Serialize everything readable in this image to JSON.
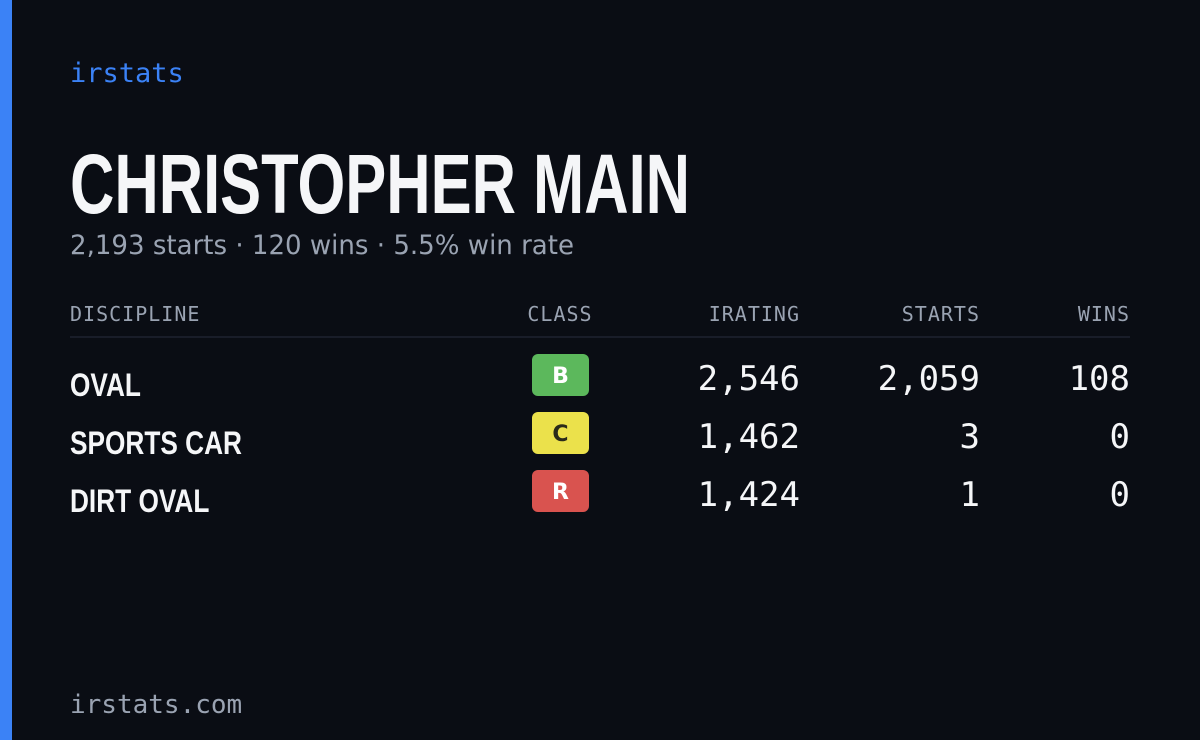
{
  "brand": "irstats",
  "name": "CHRISTOPHER MAIN",
  "summary": "2,193 starts · 120 wins · 5.5% win rate",
  "table": {
    "headers": [
      "DISCIPLINE",
      "CLASS",
      "IRATING",
      "STARTS",
      "WINS"
    ],
    "rows": [
      {
        "discipline": "OVAL",
        "class": "B",
        "class_color": "#5cb85c",
        "irating": "2,546",
        "starts": "2,059",
        "wins": "108"
      },
      {
        "discipline": "SPORTS CAR",
        "class": "C",
        "class_color": "#ebe14b",
        "irating": "1,462",
        "starts": "3",
        "wins": "0"
      },
      {
        "discipline": "DIRT OVAL",
        "class": "R",
        "class_color": "#d9534f",
        "irating": "1,424",
        "starts": "1",
        "wins": "0"
      }
    ]
  },
  "footer": "irstats.com"
}
